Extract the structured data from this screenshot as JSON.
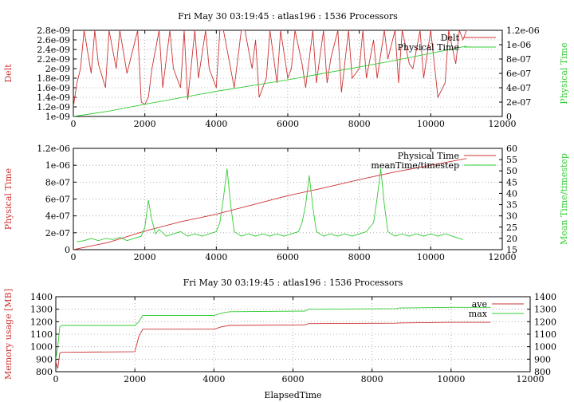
{
  "chart_data": [
    {
      "type": "line",
      "title": "Fri May 30 03:19:45 : atlas196 : 1536 Processors",
      "xlabel": "",
      "ylabel": "Delt",
      "y2label": "Physical Time",
      "xlim": [
        0,
        12000
      ],
      "ylim": [
        1e-09,
        2.8e-09
      ],
      "y2lim": [
        0,
        1.2e-06
      ],
      "xticks": [
        "0",
        "2000",
        "4000",
        "6000",
        "8000",
        "10000",
        "12000"
      ],
      "yticks": [
        "1e-09",
        "1.2e-09",
        "1.4e-09",
        "1.6e-09",
        "1.8e-09",
        "2e-09",
        "2.2e-09",
        "2.4e-09",
        "2.6e-09",
        "2.8e-09"
      ],
      "y2ticks": [
        "0",
        "2e-07",
        "4e-07",
        "6e-07",
        "8e-07",
        "1e-06",
        "1.2e-06"
      ],
      "grid": true,
      "legend_position": "top-right",
      "series": [
        {
          "name": "Delt",
          "color": "#cc3333",
          "axis": "left",
          "x": [
            0,
            100,
            200,
            300,
            500,
            600,
            700,
            900,
            1000,
            1200,
            1300,
            1500,
            1600,
            1800,
            1900,
            2000,
            2100,
            2200,
            2400,
            2500,
            2700,
            2800,
            3000,
            3100,
            3200,
            3400,
            3500,
            3700,
            3800,
            4000,
            4100,
            4200,
            4400,
            4500,
            4700,
            4800,
            5000,
            5100,
            5200,
            5400,
            5500,
            5700,
            5800,
            6000,
            6100,
            6200,
            6400,
            6500,
            6700,
            6800,
            7000,
            7100,
            7200,
            7400,
            7500,
            7700,
            7800,
            8000,
            8100,
            8200,
            8400,
            8500,
            8700,
            8800,
            9000,
            9100,
            9200,
            9400,
            9500,
            9700,
            9800,
            10000,
            10100,
            10200,
            10400,
            10500,
            10700,
            10800,
            10900,
            11000,
            11100
          ],
          "values": [
            1.2e-09,
            1.7e-09,
            2e-09,
            2.8e-09,
            1.9e-09,
            2.8e-09,
            2.1e-09,
            1.6e-09,
            2.8e-09,
            2e-09,
            2.8e-09,
            1.9e-09,
            2.2e-09,
            2.8e-09,
            1.3e-09,
            1.25e-09,
            1.4e-09,
            2e-09,
            2.8e-09,
            1.6e-09,
            2.8e-09,
            2e-09,
            1.6e-09,
            2.8e-09,
            1.35e-09,
            2.8e-09,
            1.8e-09,
            2.8e-09,
            2e-09,
            1.6e-09,
            2.8e-09,
            2.8e-09,
            2e-09,
            1.6e-09,
            2.8e-09,
            2.8e-09,
            2e-09,
            2.6e-09,
            1.4e-09,
            1.8e-09,
            2.8e-09,
            1.7e-09,
            2.8e-09,
            1.8e-09,
            2e-09,
            2.8e-09,
            2.1e-09,
            1.6e-09,
            2.8e-09,
            1.7e-09,
            2.8e-09,
            1.7e-09,
            2.2e-09,
            2.8e-09,
            1.5e-09,
            2.8e-09,
            1.8e-09,
            2e-09,
            2.8e-09,
            1.8e-09,
            2.6e-09,
            1.8e-09,
            2.8e-09,
            2.2e-09,
            2.8e-09,
            1.7e-09,
            2.8e-09,
            2.1e-09,
            2e-09,
            2.8e-09,
            1.8e-09,
            2.8e-09,
            2.1e-09,
            1.4e-09,
            1.7e-09,
            2.8e-09,
            2.1e-09,
            2.8e-09,
            2.6e-09,
            2.8e-09,
            2.8e-09
          ]
        },
        {
          "name": "Physical Time",
          "color": "#33cc33",
          "axis": "right",
          "x": [
            0,
            1000,
            2000,
            3000,
            4000,
            5000,
            6000,
            7000,
            8000,
            9000,
            10000,
            11000
          ],
          "values": [
            0,
            7.5e-08,
            1.7e-07,
            2.6e-07,
            3.5e-07,
            4.3e-07,
            5.1e-07,
            6e-07,
            6.9e-07,
            7.8e-07,
            8.8e-07,
            9.8e-07
          ]
        }
      ]
    },
    {
      "type": "line",
      "title": "",
      "xlabel": "",
      "ylabel": "Physical Time",
      "y2label": "Mean Time/timestep",
      "xlim": [
        0,
        12000
      ],
      "ylim": [
        0,
        1.2e-06
      ],
      "y2lim": [
        15,
        60
      ],
      "xticks": [
        "0",
        "2000",
        "4000",
        "6000",
        "8000",
        "10000",
        "12000"
      ],
      "yticks": [
        "0",
        "2e-07",
        "4e-07",
        "6e-07",
        "8e-07",
        "1e-06",
        "1.2e-06"
      ],
      "y2ticks": [
        "15",
        "20",
        "25",
        "30",
        "35",
        "40",
        "45",
        "50",
        "55",
        "60"
      ],
      "grid": true,
      "legend_position": "top-right",
      "series": [
        {
          "name": "Physical Time",
          "color": "#cc3333",
          "axis": "left",
          "x": [
            0,
            1000,
            2000,
            3000,
            4000,
            5000,
            6000,
            7000,
            8000,
            9000,
            10000,
            11000
          ],
          "values": [
            0,
            8.8e-08,
            2.2e-07,
            3.3e-07,
            4.2e-07,
            5.3e-07,
            6.4e-07,
            7.3e-07,
            8.3e-07,
            9.2e-07,
            1e-06,
            1.08e-06
          ]
        },
        {
          "name": "meanTime/timestep",
          "color": "#33cc33",
          "axis": "right",
          "x": [
            100,
            300,
            500,
            700,
            900,
            1100,
            1300,
            1500,
            1700,
            1900,
            2000,
            2100,
            2200,
            2300,
            2400,
            2600,
            2800,
            3000,
            3200,
            3400,
            3600,
            3800,
            4000,
            4100,
            4200,
            4300,
            4400,
            4500,
            4700,
            4900,
            5100,
            5300,
            5500,
            5700,
            5900,
            6100,
            6300,
            6400,
            6500,
            6600,
            6700,
            6800,
            7000,
            7200,
            7400,
            7600,
            7800,
            8000,
            8200,
            8400,
            8500,
            8600,
            8700,
            8800,
            9000,
            9200,
            9400,
            9600,
            9800,
            10000,
            10200,
            10400,
            10600,
            10800,
            10900
          ],
          "values": [
            18.5,
            19,
            20,
            19,
            20,
            19.5,
            20.5,
            19,
            20,
            21,
            25,
            37,
            28,
            22,
            24,
            21,
            22,
            23,
            21,
            22,
            21,
            22,
            23,
            27,
            38,
            51,
            35,
            23,
            21,
            22,
            21,
            22,
            21,
            22,
            21,
            22,
            23,
            27,
            35,
            48,
            34,
            23,
            21,
            22,
            21,
            22,
            21,
            22,
            23,
            27,
            38,
            51,
            35,
            23,
            21,
            22,
            21,
            22,
            21,
            22,
            21,
            22,
            21,
            20,
            19.5
          ]
        }
      ]
    },
    {
      "type": "line",
      "title": "Fri May 30 03:19:45 : atlas196 : 1536 Processors",
      "xlabel": "ElapsedTime",
      "ylabel": "Memory usage [MB]",
      "y2label": "",
      "xlim": [
        0,
        12000
      ],
      "ylim": [
        800,
        1400
      ],
      "y2lim": [
        800,
        1400
      ],
      "xticks": [
        "0",
        "2000",
        "4000",
        "6000",
        "8000",
        "10000",
        "12000"
      ],
      "yticks": [
        "800",
        "900",
        "1000",
        "1100",
        "1200",
        "1300",
        "1400"
      ],
      "y2ticks": [
        "800",
        "900",
        "1000",
        "1100",
        "1200",
        "1300",
        "1400"
      ],
      "grid": true,
      "legend_position": "top-right",
      "series": [
        {
          "name": "ave",
          "color": "#cc3333",
          "axis": "left",
          "x": [
            0,
            50,
            100,
            150,
            2000,
            2100,
            2200,
            4000,
            4100,
            4200,
            4400,
            6300,
            6400,
            6500,
            8600,
            8700,
            10000,
            11000
          ],
          "values": [
            880,
            825,
            950,
            955,
            960,
            1080,
            1140,
            1140,
            1150,
            1160,
            1170,
            1175,
            1185,
            1185,
            1188,
            1190,
            1195,
            1195
          ]
        },
        {
          "name": "max",
          "color": "#33cc33",
          "axis": "left",
          "x": [
            0,
            50,
            100,
            150,
            2000,
            2100,
            2200,
            4000,
            4100,
            4200,
            4400,
            6300,
            6400,
            6500,
            8600,
            8700,
            10000,
            11000
          ],
          "values": [
            900,
            1000,
            1160,
            1170,
            1170,
            1200,
            1250,
            1250,
            1260,
            1270,
            1280,
            1285,
            1300,
            1300,
            1305,
            1310,
            1315,
            1315
          ]
        }
      ]
    }
  ]
}
